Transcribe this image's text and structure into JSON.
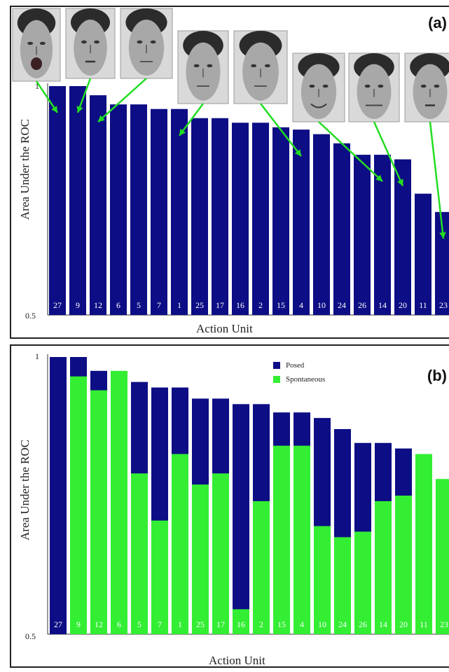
{
  "chart_data": [
    {
      "type": "bar",
      "panel_label": "(a)",
      "title": "",
      "xlabel": "Action Unit",
      "ylabel": "Area Under the ROC",
      "ylim": [
        0.5,
        1
      ],
      "ytick_labels": [
        "0.5",
        "1"
      ],
      "categories": [
        "27",
        "9",
        "12",
        "6",
        "5",
        "7",
        "1",
        "25",
        "17",
        "16",
        "2",
        "15",
        "4",
        "10",
        "24",
        "26",
        "14",
        "20",
        "11",
        "23"
      ],
      "values": [
        1.0,
        1.0,
        0.98,
        0.96,
        0.96,
        0.95,
        0.95,
        0.93,
        0.93,
        0.92,
        0.92,
        0.91,
        0.905,
        0.895,
        0.875,
        0.85,
        0.85,
        0.84,
        0.765,
        0.725
      ],
      "bar_color": "#0d0d85",
      "face_images_for": [
        "27",
        "9",
        "12",
        "1",
        "4",
        "14",
        "20",
        "23"
      ]
    },
    {
      "type": "bar",
      "panel_label": "(b)",
      "title": "",
      "xlabel": "Action Unit",
      "ylabel": "Area Under the ROC",
      "ylim": [
        0.5,
        1
      ],
      "ytick_labels": [
        "0.5",
        "1"
      ],
      "categories": [
        "27",
        "9",
        "12",
        "6",
        "5",
        "7",
        "1",
        "25",
        "17",
        "16",
        "2",
        "15",
        "4",
        "10",
        "24",
        "26",
        "14",
        "20",
        "11",
        "23"
      ],
      "series": [
        {
          "name": "Posed",
          "color": "#0d0d85",
          "values": [
            1.0,
            1.0,
            0.975,
            0.955,
            0.955,
            0.945,
            0.945,
            0.925,
            0.925,
            0.915,
            0.915,
            0.9,
            0.9,
            0.89,
            0.87,
            0.845,
            0.845,
            0.835,
            0.82,
            0.77
          ]
        },
        {
          "name": "Spontaneous",
          "color": "#33ee33",
          "values": [
            0.5,
            0.965,
            0.94,
            0.975,
            0.79,
            0.705,
            0.825,
            0.77,
            0.79,
            0.545,
            0.74,
            0.84,
            0.84,
            0.695,
            0.675,
            0.685,
            0.74,
            0.75,
            0.825,
            0.78
          ]
        }
      ],
      "legend_location": "upper-center"
    }
  ]
}
